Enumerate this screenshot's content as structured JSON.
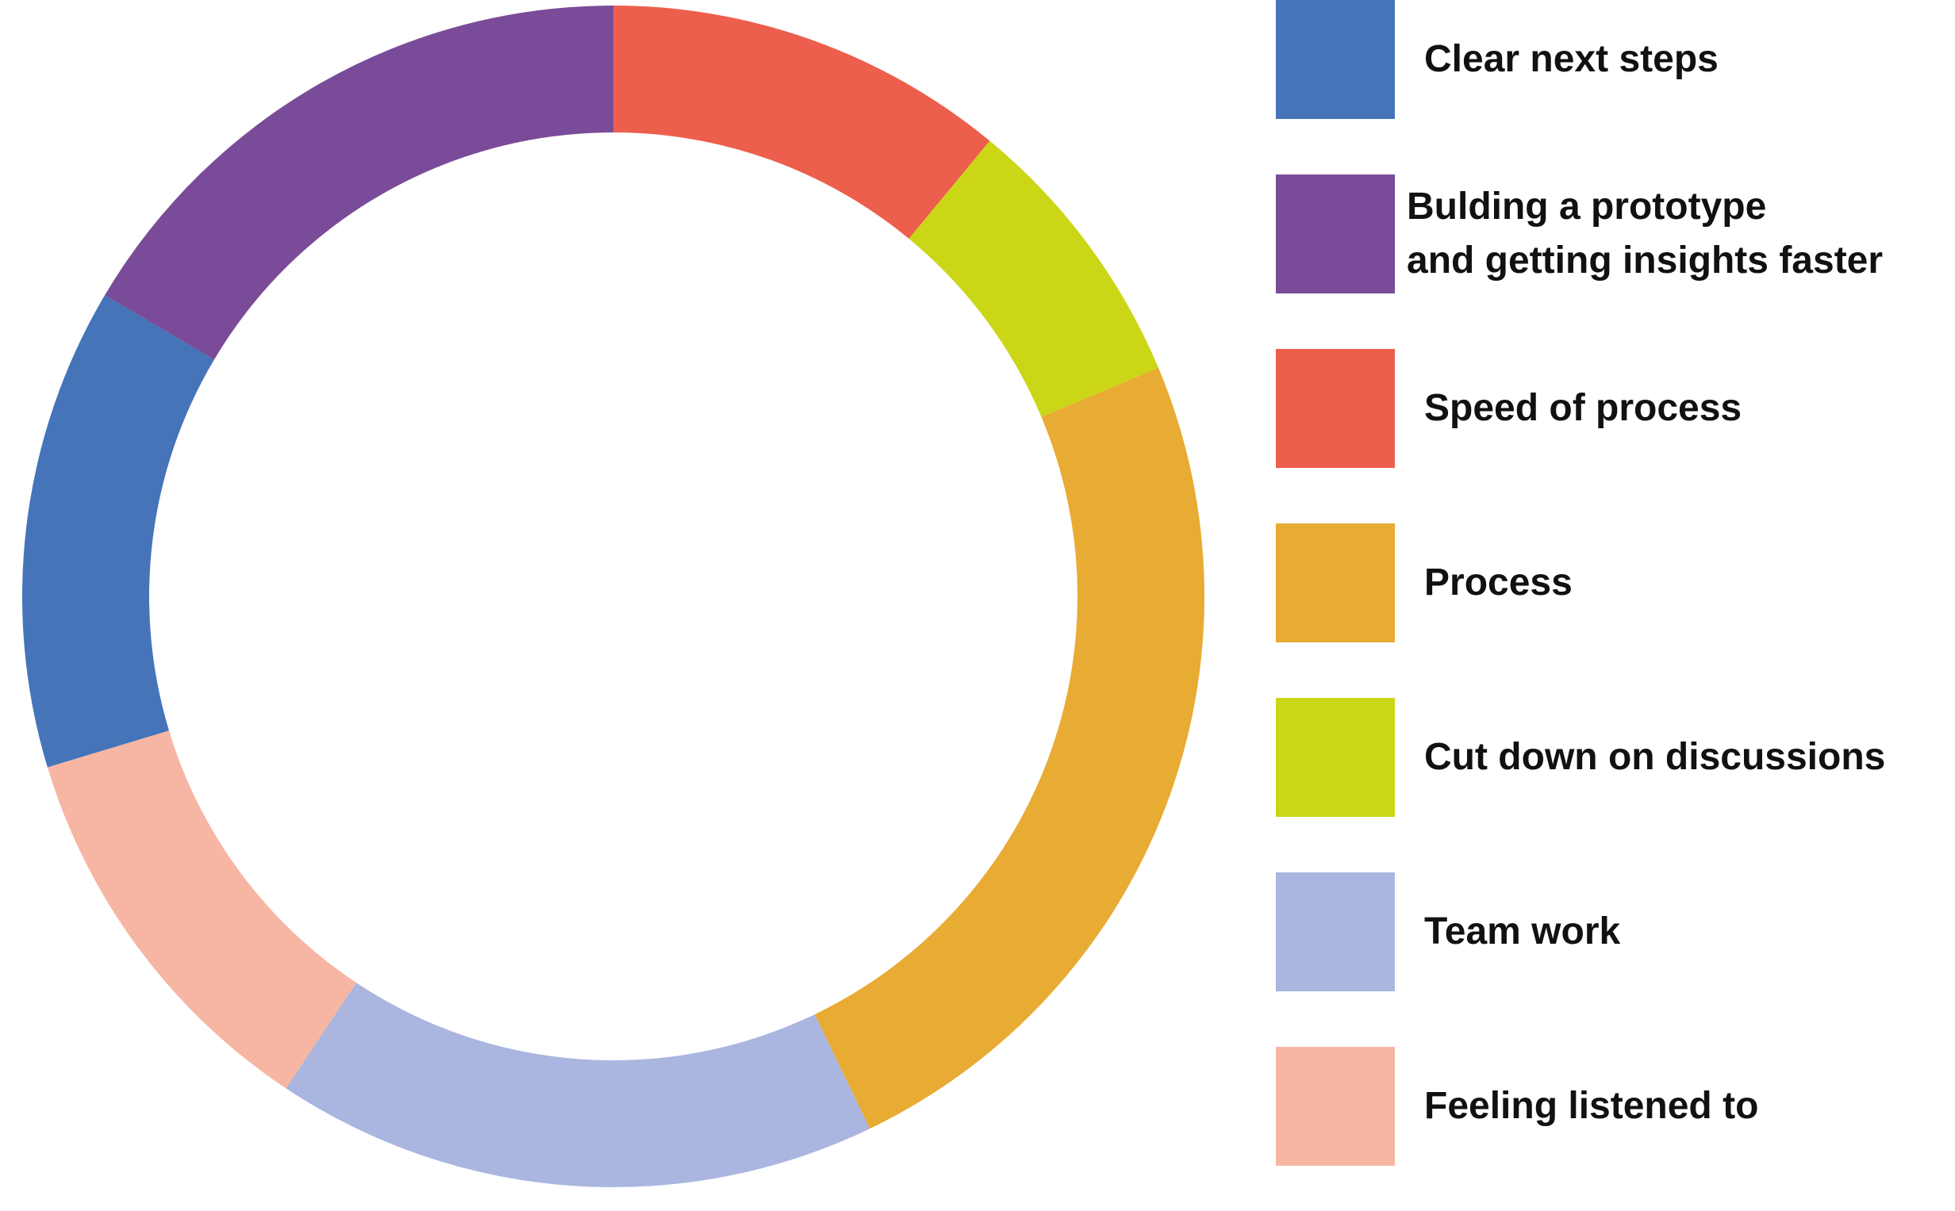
{
  "chart_data": {
    "type": "pie",
    "title": "",
    "donut": true,
    "slices": [
      {
        "label": "Speed of process",
        "value": 10,
        "color": "#EC5F4C"
      },
      {
        "label": "Cut down on discussions",
        "value": 7,
        "color": "#CBD616"
      },
      {
        "label": "Process",
        "value": 22,
        "color": "#E8AB33"
      },
      {
        "label": "Team work",
        "value": 15,
        "color": "#AAB6DF"
      },
      {
        "label": "Feeling listened to",
        "value": 10,
        "color": "#F6B6A3"
      },
      {
        "label": "Clear next steps",
        "value": 12,
        "color": "#4574B9"
      },
      {
        "label": "Bulding a prototype\nand getting insights faster",
        "value": 15,
        "color": "#7A4B98"
      }
    ],
    "legend": [
      {
        "label": "Clear next steps",
        "color": "#4574B9"
      },
      {
        "label": "Bulding a prototype\nand getting insights faster",
        "color": "#7A4B98"
      },
      {
        "label": "Speed of process",
        "color": "#EC5F4C"
      },
      {
        "label": "Process",
        "color": "#E8AB33"
      },
      {
        "label": "Cut down on discussions",
        "color": "#CBD616"
      },
      {
        "label": "Team work",
        "color": "#AAB6DF"
      },
      {
        "label": "Feeling listened to",
        "color": "#F6B6A3"
      }
    ],
    "legend_position": "right"
  }
}
